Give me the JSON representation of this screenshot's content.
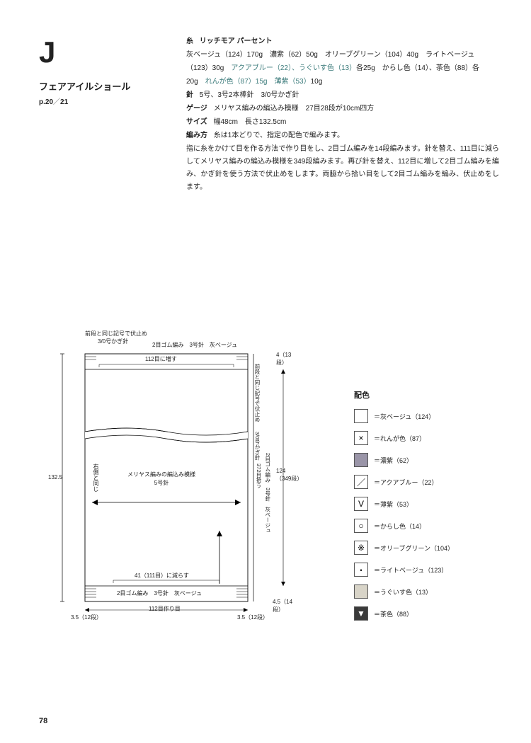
{
  "title": {
    "letter": "J",
    "name": "フェアアイルショール",
    "page_prefix": "p.",
    "page_a": "20",
    "page_b": "21"
  },
  "specs": {
    "yarn_label": "糸",
    "yarn_brand": "リッチモア パーセント",
    "yarn_line1a": "灰ベージュ（124）170g　濃紫（62）50g　オリーブグリーン（104）40g　ライトベージュ",
    "yarn_line1b": "（123）30g　",
    "yarn_line1c": "アクアブルー（22）、うぐいす色（13）",
    "yarn_line1d": "各25g　からし色（14）、茶色（88）各",
    "yarn_line2a": "20g　",
    "yarn_line2b": "れんが色（87）15g　薄紫（53）",
    "yarn_line2c": "10g",
    "needles_label": "針",
    "needles": "5号、3号2本棒針　3/0号かぎ針",
    "gauge_label": "ゲージ",
    "gauge": "メリヤス編みの編込み模様　27目28段が10cm四方",
    "size_label": "サイズ",
    "size": "幅48cm　長さ132.5cm",
    "method_label": "編み方",
    "method_intro": "糸は1本どりで、指定の配色で編みます。",
    "method_body": "指に糸をかけて目を作る方法で作り目をし、2目ゴム編みを14段編みます。針を替え、111目に減らしてメリヤス編みの編込み模様を349段編みます。再び針を替え、112目に増して2目ゴム編みを編み、かぎ針を使う方法で伏止めをします。両脇から拾い目をして2目ゴム編みを編み、伏止めをします。"
  },
  "diagram": {
    "top_note1": "前段と同じ記号で伏止め",
    "top_note2": "3/0号かぎ針",
    "top_rib": "2目ゴム編み　3号針　灰ベージュ",
    "top_stitch": "112目に増す",
    "left_height": "132.5",
    "left_note": "右側と同じ",
    "center": "メリヤス編みの編込み模様\n5号針",
    "bottom_reduce": "41（111目）に減らす",
    "bottom_rib": "2目ゴム編み　3号針　灰ベージュ",
    "bottom_cast": "112目作り目",
    "corner_l": "3.5（12段）",
    "corner_r": "3.5（12段）",
    "right_top": "4（13段）",
    "right_bot": "4.5（14段）",
    "right_note1": "前段と同じ記号で伏止め",
    "right_note2": "3/0号かぎ針",
    "right_pickup": "372目拾う",
    "right_rib": "2目ゴム編み　3号針　灰ベージュ",
    "right_rows": "124\n（349段）"
  },
  "legend": {
    "title": "配色",
    "items": [
      {
        "label": "＝灰ベージュ（124）",
        "fill": "#ffffff",
        "symbol": ""
      },
      {
        "label": "＝れんが色（87）",
        "fill": "#ffffff",
        "symbol": "×"
      },
      {
        "label": "＝濃紫（62）",
        "fill": "#9a95a8",
        "symbol": ""
      },
      {
        "label": "＝アクアブルー（22）",
        "fill": "#ffffff",
        "symbol": "／"
      },
      {
        "label": "＝薄紫（53）",
        "fill": "#ffffff",
        "symbol": "V"
      },
      {
        "label": "＝からし色（14）",
        "fill": "#ffffff",
        "symbol": "○"
      },
      {
        "label": "＝オリーブグリーン（104）",
        "fill": "#ffffff",
        "symbol": "※"
      },
      {
        "label": "＝ライトベージュ（123）",
        "fill": "#ffffff",
        "symbol": "・"
      },
      {
        "label": "＝うぐいす色（13）",
        "fill": "#d8d4c8",
        "symbol": ""
      },
      {
        "label": "＝茶色（88）",
        "fill": "#3a3a3a",
        "symbol": "▼",
        "symcolor": "#fff"
      }
    ]
  },
  "page_number": "78",
  "colors": {
    "accent": "#3a7a7a",
    "text": "#222222",
    "border": "#555555"
  }
}
